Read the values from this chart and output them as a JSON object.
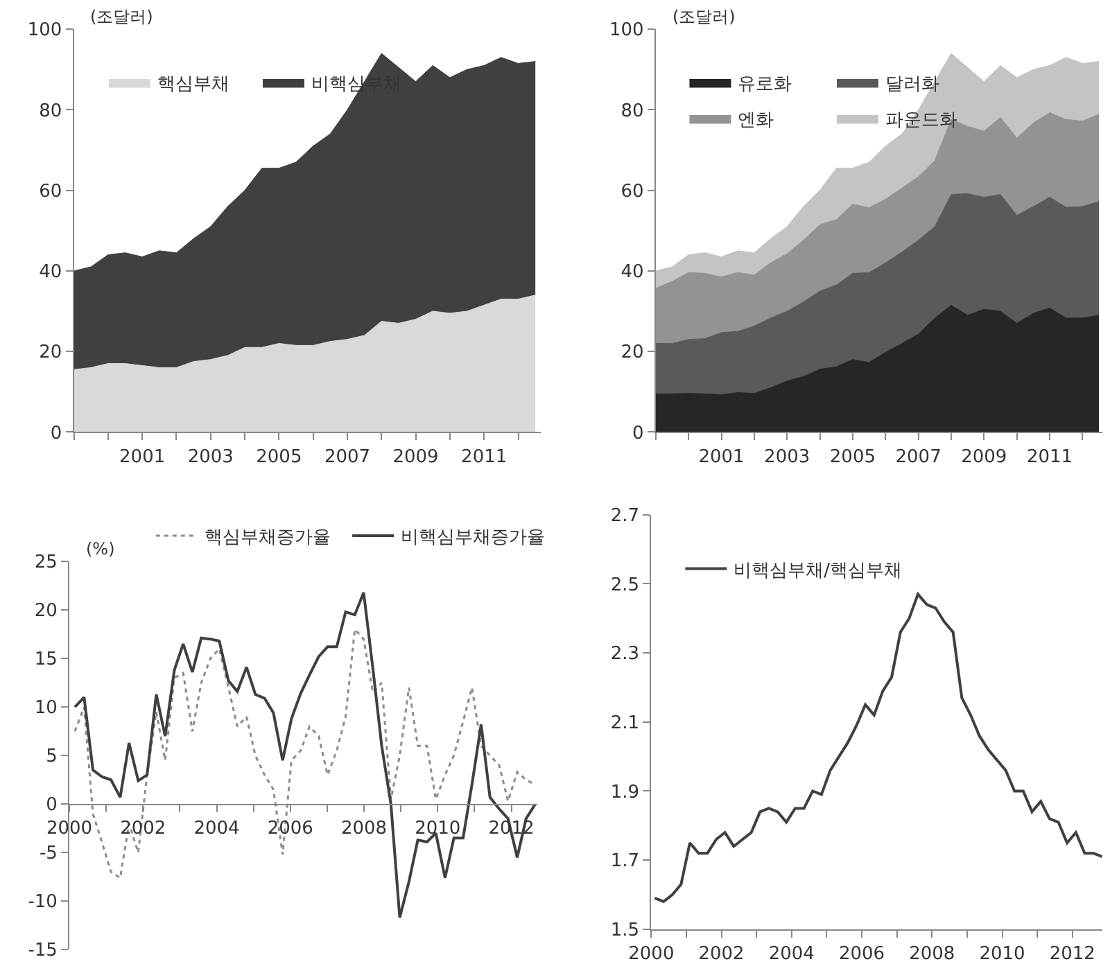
{
  "chart_data": [
    {
      "type": "area",
      "stacked": true,
      "ylabel": "(조달러)",
      "legend": "top left",
      "xlim": [
        1999,
        2012.65
      ],
      "xticks": [
        {
          "value": 1999,
          "label": null
        },
        {
          "value": 2000,
          "label": null
        },
        2001,
        {
          "value": 2002,
          "label": null
        },
        2003,
        {
          "value": 2004,
          "label": null
        },
        2005,
        {
          "value": 2006,
          "label": null
        },
        2007,
        {
          "value": 2008,
          "label": null
        },
        2009,
        {
          "value": 2010,
          "label": null
        },
        2011,
        {
          "value": 2012,
          "label": null
        }
      ],
      "ylim": [
        0,
        100
      ],
      "yticks": [
        0,
        20,
        40,
        60,
        80,
        100
      ],
      "x": [
        1999,
        1999.5,
        2000,
        2000.5,
        2001,
        2001.5,
        2002,
        2002.5,
        2003,
        2003.5,
        2004,
        2004.5,
        2005,
        2005.5,
        2006,
        2006.5,
        2007,
        2007.5,
        2008,
        2008.5,
        2009,
        2009.5,
        2010,
        2010.5,
        2011,
        2011.5,
        2012,
        2012.5
      ],
      "series": [
        {
          "name": "핵심부채",
          "color": "#d9d9d9",
          "values": [
            15.5,
            16,
            17,
            17,
            16.5,
            16,
            16,
            17.5,
            18,
            19,
            21,
            21,
            22,
            21.5,
            21.5,
            22.5,
            23,
            24,
            27.5,
            27,
            28,
            30,
            29.5,
            30,
            31.5,
            33,
            33,
            34
          ]
        },
        {
          "name": "비핵심부채",
          "color": "#404040",
          "values": [
            24.5,
            25,
            27,
            27.5,
            27,
            29,
            28.5,
            30.5,
            33,
            37,
            39,
            44.5,
            43.5,
            45.5,
            49.5,
            51.5,
            57,
            63,
            66.5,
            63.5,
            59,
            61,
            58.5,
            60,
            59.5,
            60,
            58.5,
            58
          ]
        }
      ]
    },
    {
      "type": "area",
      "stacked": true,
      "ylabel": "(조달러)",
      "legend": "top left",
      "xlim": [
        1999,
        2012.6
      ],
      "xticks": [
        {
          "value": 1999,
          "label": null
        },
        {
          "value": 2000,
          "label": null
        },
        2001,
        {
          "value": 2002,
          "label": null
        },
        2003,
        {
          "value": 2004,
          "label": null
        },
        2005,
        {
          "value": 2006,
          "label": null
        },
        2007,
        {
          "value": 2008,
          "label": null
        },
        2009,
        {
          "value": 2010,
          "label": null
        },
        2011,
        {
          "value": 2012,
          "label": null
        }
      ],
      "ylim": [
        0,
        100
      ],
      "yticks": [
        0,
        20,
        40,
        60,
        80,
        100
      ],
      "x": [
        1999,
        1999.5,
        2000,
        2000.5,
        2001,
        2001.5,
        2002,
        2002.5,
        2003,
        2003.5,
        2004,
        2004.5,
        2005,
        2005.5,
        2006,
        2006.5,
        2007,
        2007.5,
        2008,
        2008.5,
        2009,
        2009.5,
        2010,
        2010.5,
        2011,
        2011.5,
        2012,
        2012.5
      ],
      "series": [
        {
          "name": "유로화",
          "color": "#262626",
          "values": [
            9.5,
            9.5,
            9.6,
            9.5,
            9.3,
            9.8,
            9.6,
            11,
            12.7,
            13.8,
            15.6,
            16.2,
            18,
            17.3,
            19.8,
            22,
            24.3,
            28.3,
            31.5,
            29,
            30.5,
            30,
            27,
            29.5,
            30.8,
            28.3,
            28.3,
            29
          ]
        },
        {
          "name": "달러화",
          "color": "#5a5a5a",
          "values": [
            12.5,
            12.5,
            13.4,
            13.7,
            15.4,
            15.2,
            16.7,
            17.3,
            17.3,
            18.5,
            19.4,
            20.3,
            21.4,
            22.3,
            22.2,
            22.7,
            23.3,
            22.7,
            27.5,
            30.2,
            27.8,
            29,
            26.8,
            26.5,
            27.5,
            27.5,
            27.7,
            28.2
          ]
        },
        {
          "name": "엔화",
          "color": "#939393",
          "values": [
            13.7,
            15.4,
            16.6,
            16.2,
            13.8,
            14.6,
            12.7,
            13.7,
            14.3,
            15.3,
            16.5,
            16.2,
            17.2,
            16.1,
            15.8,
            15.9,
            15.8,
            16.4,
            18.6,
            16.7,
            16.4,
            19.1,
            19.2,
            20.7,
            21,
            21.8,
            21.2,
            21.7
          ]
        },
        {
          "name": "파운드화",
          "color": "#c4c4c4",
          "values": [
            4.3,
            3.6,
            4.4,
            5.1,
            5,
            5.4,
            5.5,
            6,
            6.7,
            8.4,
            8.5,
            12.8,
            8.9,
            11.3,
            13.2,
            13.4,
            16.6,
            19.6,
            16.4,
            14.6,
            12.3,
            12.9,
            15,
            13.3,
            11.7,
            15.4,
            14.3,
            13.1
          ]
        }
      ]
    },
    {
      "type": "line",
      "ylabel": "(%)",
      "legend": "top",
      "xlim": [
        2000,
        2012.7
      ],
      "xticks": [
        2000,
        {
          "value": 2001,
          "label": null
        },
        2002,
        {
          "value": 2003,
          "label": null
        },
        2004,
        {
          "value": 2005,
          "label": null
        },
        2006,
        {
          "value": 2007,
          "label": null
        },
        2008,
        {
          "value": 2009,
          "label": null
        },
        2010,
        {
          "value": 2011,
          "label": null
        },
        2012
      ],
      "ylim": [
        -15,
        25
      ],
      "yticks": [
        -15,
        -10,
        -5,
        0,
        5,
        10,
        15,
        20,
        25
      ],
      "x": [
        2000.15,
        2000.4,
        2000.64,
        2000.89,
        2001.13,
        2001.38,
        2001.62,
        2001.87,
        2002.11,
        2002.36,
        2002.6,
        2002.85,
        2003.09,
        2003.34,
        2003.58,
        2003.83,
        2004.07,
        2004.32,
        2004.56,
        2004.81,
        2005.05,
        2005.3,
        2005.54,
        2005.79,
        2006.03,
        2006.28,
        2006.52,
        2006.77,
        2007.01,
        2007.26,
        2007.5,
        2007.75,
        2007.99,
        2008.24,
        2008.48,
        2008.73,
        2008.97,
        2009.22,
        2009.46,
        2009.71,
        2009.95,
        2010.2,
        2010.44,
        2010.69,
        2010.93,
        2011.18,
        2011.42,
        2011.67,
        2011.91,
        2012.16,
        2012.4,
        2012.65
      ],
      "series": [
        {
          "name": "핵심부채증가율",
          "color": "#8c8c8c",
          "line_style": "dotted",
          "values": [
            7.5,
            10,
            -1,
            -4,
            -7,
            -7.6,
            -2,
            -5,
            3,
            9.5,
            4.5,
            13,
            13.5,
            7.5,
            12.5,
            15,
            16,
            12,
            8,
            9,
            5,
            3,
            1.5,
            -5.2,
            4.5,
            5.5,
            8,
            7,
            3,
            5.5,
            9,
            18,
            17,
            11.5,
            12.5,
            0.5,
            5,
            12,
            6,
            6,
            0.5,
            3,
            5,
            8.5,
            12,
            6,
            5,
            4,
            0.3,
            3.3,
            2.5,
            2
          ]
        },
        {
          "name": "비핵심부채증가율",
          "color": "#404040",
          "line_style": "solid",
          "values": [
            10,
            11,
            3.5,
            2.8,
            2.5,
            0.7,
            6.3,
            2.4,
            3,
            11.3,
            7,
            13.8,
            16.5,
            13.6,
            17.1,
            17,
            16.8,
            12.7,
            11.6,
            14.1,
            11.3,
            10.9,
            9.4,
            4.5,
            8.8,
            11.4,
            13.3,
            15.2,
            16.2,
            16.2,
            19.8,
            19.5,
            21.8,
            14,
            6,
            0,
            -11.7,
            -8,
            -3.7,
            -3.9,
            -3,
            -7.6,
            -3.5,
            -3.5,
            2,
            8.2,
            0.7,
            -0.5,
            -1.5,
            -5.5,
            -1.5,
            0
          ]
        }
      ]
    },
    {
      "type": "line",
      "legend": "top left",
      "xlim": [
        2000,
        2012.85
      ],
      "xticks": [
        2000,
        {
          "value": 2001,
          "label": null
        },
        2002,
        {
          "value": 2003,
          "label": null
        },
        2004,
        {
          "value": 2005,
          "label": null
        },
        2006,
        {
          "value": 2007,
          "label": null
        },
        2008,
        {
          "value": 2009,
          "label": null
        },
        2010,
        {
          "value": 2011,
          "label": null
        },
        2012
      ],
      "ylim": [
        1.5,
        2.7
      ],
      "yticks": [
        1.5,
        1.7,
        1.9,
        2.1,
        2.3,
        2.5,
        2.7
      ],
      "x": [
        2000.1,
        2000.35,
        2000.6,
        2000.85,
        2001.1,
        2001.35,
        2001.6,
        2001.85,
        2002.1,
        2002.35,
        2002.6,
        2002.85,
        2003.1,
        2003.35,
        2003.6,
        2003.85,
        2004.1,
        2004.35,
        2004.6,
        2004.85,
        2005.1,
        2005.35,
        2005.6,
        2005.85,
        2006.1,
        2006.35,
        2006.6,
        2006.85,
        2007.1,
        2007.35,
        2007.6,
        2007.85,
        2008.1,
        2008.35,
        2008.6,
        2008.85,
        2009.1,
        2009.35,
        2009.6,
        2009.85,
        2010.1,
        2010.35,
        2010.6,
        2010.85,
        2011.1,
        2011.35,
        2011.6,
        2011.85,
        2012.1,
        2012.35,
        2012.6,
        2012.85
      ],
      "series": [
        {
          "name": "비핵심부채/핵심부채",
          "color": "#404040",
          "line_style": "solid",
          "values": [
            1.59,
            1.58,
            1.6,
            1.63,
            1.75,
            1.72,
            1.72,
            1.76,
            1.78,
            1.74,
            1.76,
            1.78,
            1.84,
            1.85,
            1.84,
            1.81,
            1.85,
            1.85,
            1.9,
            1.89,
            1.96,
            2,
            2.04,
            2.09,
            2.15,
            2.12,
            2.19,
            2.23,
            2.36,
            2.4,
            2.47,
            2.44,
            2.43,
            2.39,
            2.36,
            2.17,
            2.12,
            2.06,
            2.02,
            1.99,
            1.96,
            1.9,
            1.9,
            1.84,
            1.87,
            1.82,
            1.81,
            1.75,
            1.78,
            1.72,
            1.72,
            1.71
          ]
        }
      ]
    }
  ]
}
